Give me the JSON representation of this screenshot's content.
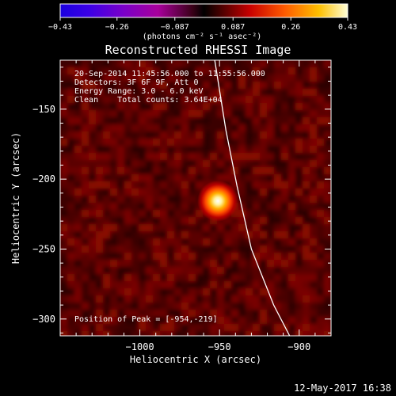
{
  "chart_data": {
    "type": "heatmap",
    "title": "Reconstructed RHESSI Image",
    "xlabel": "Heliocentric X (arcsec)",
    "ylabel": "Heliocentric Y (arcsec)",
    "xlim": [
      -1050,
      -880
    ],
    "ylim": [
      -312,
      -115
    ],
    "x_ticks": [
      -1000,
      -950,
      -900
    ],
    "x_tick_labels": [
      "−1000",
      "−950",
      "−900"
    ],
    "y_ticks": [
      -150,
      -200,
      -250,
      -300
    ],
    "y_tick_labels": [
      "−150",
      "−200",
      "−250",
      "−300"
    ],
    "colorbar": {
      "min": -0.43,
      "max": 0.43,
      "ticks": [
        -0.43,
        -0.26,
        -0.087,
        0.087,
        0.26,
        0.43
      ],
      "tick_labels": [
        "−0.43",
        "−0.26",
        "−0.087",
        "0.087",
        "0.26",
        "0.43"
      ],
      "unit_label": "(photons cm⁻² s⁻¹ asec⁻²)"
    },
    "annotations": [
      "20-Sep-2014 11:45:56.000 to 11:55:56.000",
      "Detectors: 3F 6F 9F, Att 0",
      "Energy Range: 3.0 - 6.0 keV",
      "Clean    Total counts: 3.64E+04"
    ],
    "peak_label": "Position of Peak = [-954,-219]",
    "peak": {
      "x": -954,
      "y": -219,
      "value": 0.43
    },
    "limb_curve": [
      {
        "x": -953,
        "y": -115
      },
      {
        "x": -946,
        "y": -165
      },
      {
        "x": -939,
        "y": -205
      },
      {
        "x": -930,
        "y": -250
      },
      {
        "x": -916,
        "y": -290
      },
      {
        "x": -906,
        "y": -312
      }
    ]
  },
  "footer": {
    "date": "12-May-2017 16:38"
  },
  "colors": {
    "background": "#000000",
    "text": "#ffffff",
    "limb": "#ffffff"
  }
}
